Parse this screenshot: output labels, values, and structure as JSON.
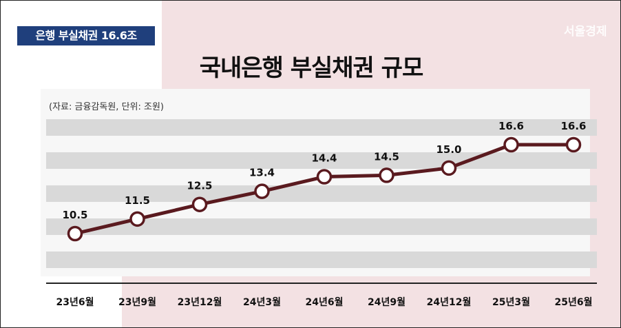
{
  "header": {
    "tag_text": "은행 부실채권 16.6조",
    "watermark": "서울경제"
  },
  "title": "국내은행 부실채권 규모",
  "source_note": "(자료: 금융감독원, 단위: 조원)",
  "colors": {
    "tag_bg": "#1f3f7c",
    "line": "#5a1a1f",
    "marker_fill": "#ffffff",
    "band": "#d9d9d9",
    "accent_bg": "#f3e1e3"
  },
  "chart_data": {
    "type": "line",
    "title": "국내은행 부실채권 규모",
    "x": [
      "23년6월",
      "23년9월",
      "23년12월",
      "24년3월",
      "24년6월",
      "24년9월",
      "24년12월",
      "25년3월",
      "25년6월"
    ],
    "y": [
      10.5,
      11.5,
      12.5,
      13.4,
      14.4,
      14.5,
      15.0,
      16.6,
      16.6
    ],
    "data_labels": [
      "10.5",
      "11.5",
      "12.5",
      "13.4",
      "14.4",
      "14.5",
      "15.0",
      "16.6",
      "16.6"
    ],
    "xlabel": "",
    "ylabel": "",
    "grid": "horizontal bands",
    "legend": "none"
  }
}
